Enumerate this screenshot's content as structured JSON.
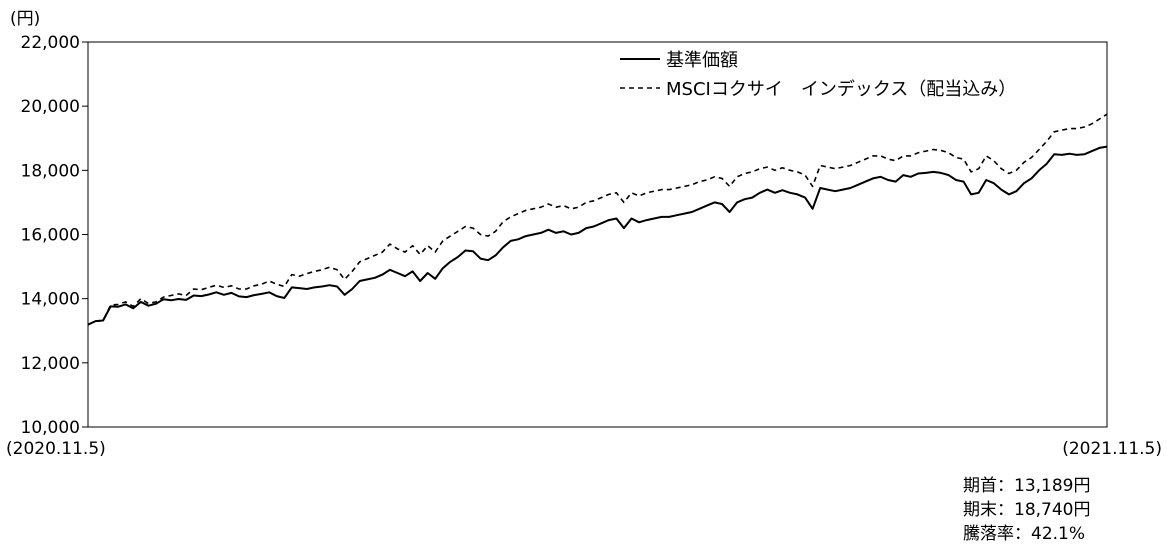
{
  "chart_data": {
    "type": "line",
    "unit_label": "(円)",
    "x_start_label": "(2020.11.5)",
    "x_end_label": "(2021.11.5)",
    "ylim": [
      10000,
      22000
    ],
    "y_ticks": [
      10000,
      12000,
      14000,
      16000,
      18000,
      20000,
      22000
    ],
    "y_tick_labels": [
      "10,000",
      "12,000",
      "14,000",
      "16,000",
      "18,000",
      "20,000",
      "22,000"
    ],
    "grid": false,
    "legend_position": "top-right",
    "series": [
      {
        "name": "基準価額",
        "style": "solid",
        "color": "#000000",
        "values": [
          13189,
          13300,
          13320,
          13760,
          13750,
          13820,
          13700,
          13900,
          13780,
          13840,
          13980,
          13950,
          13990,
          13960,
          14100,
          14080,
          14130,
          14200,
          14120,
          14180,
          14070,
          14050,
          14110,
          14150,
          14200,
          14080,
          14020,
          14350,
          14330,
          14300,
          14350,
          14380,
          14420,
          14380,
          14120,
          14300,
          14550,
          14600,
          14650,
          14750,
          14900,
          14800,
          14700,
          14850,
          14550,
          14800,
          14620,
          14950,
          15150,
          15300,
          15500,
          15480,
          15250,
          15200,
          15350,
          15600,
          15800,
          15850,
          15950,
          16000,
          16050,
          16150,
          16050,
          16100,
          16000,
          16050,
          16200,
          16250,
          16350,
          16450,
          16500,
          16200,
          16500,
          16380,
          16450,
          16500,
          16550,
          16550,
          16600,
          16650,
          16700,
          16800,
          16900,
          17000,
          16950,
          16700,
          17000,
          17100,
          17150,
          17300,
          17400,
          17300,
          17380,
          17300,
          17250,
          17150,
          16800,
          17450,
          17400,
          17350,
          17400,
          17450,
          17550,
          17650,
          17750,
          17800,
          17700,
          17650,
          17850,
          17800,
          17900,
          17920,
          17950,
          17920,
          17850,
          17700,
          17650,
          17250,
          17300,
          17700,
          17600,
          17400,
          17250,
          17350,
          17600,
          17750,
          18000,
          18200,
          18500,
          18480,
          18520,
          18480,
          18500,
          18600,
          18700,
          18740
        ]
      },
      {
        "name": "MSCIコクサイ　インデックス（配当込み）",
        "style": "dashed",
        "color": "#000000",
        "values": [
          13189,
          13300,
          13320,
          13800,
          13820,
          13900,
          13760,
          14000,
          13850,
          13900,
          14050,
          14100,
          14150,
          14100,
          14300,
          14280,
          14350,
          14420,
          14350,
          14400,
          14300,
          14300,
          14400,
          14450,
          14550,
          14450,
          14380,
          14750,
          14700,
          14780,
          14850,
          14900,
          14980,
          14900,
          14600,
          14850,
          15150,
          15250,
          15350,
          15450,
          15700,
          15550,
          15450,
          15650,
          15380,
          15650,
          15450,
          15800,
          15950,
          16100,
          16250,
          16200,
          16000,
          15950,
          16100,
          16400,
          16550,
          16650,
          16750,
          16800,
          16850,
          16950,
          16850,
          16900,
          16800,
          16850,
          17000,
          17050,
          17150,
          17250,
          17300,
          17000,
          17300,
          17200,
          17300,
          17350,
          17400,
          17400,
          17450,
          17500,
          17550,
          17650,
          17700,
          17800,
          17750,
          17500,
          17800,
          17900,
          17950,
          18050,
          18100,
          18000,
          18080,
          18000,
          17950,
          17850,
          17500,
          18150,
          18100,
          18050,
          18100,
          18150,
          18250,
          18350,
          18450,
          18450,
          18350,
          18300,
          18450,
          18450,
          18550,
          18600,
          18650,
          18620,
          18550,
          18400,
          18350,
          17950,
          18050,
          18450,
          18300,
          18050,
          17900,
          18000,
          18250,
          18400,
          18650,
          18900,
          19200,
          19250,
          19300,
          19300,
          19350,
          19450,
          19600,
          19750
        ]
      }
    ]
  },
  "stats": {
    "start_value": "期首：13,189円",
    "end_value": "期末：18,740円",
    "change_rate": "騰落率：42.1%"
  }
}
